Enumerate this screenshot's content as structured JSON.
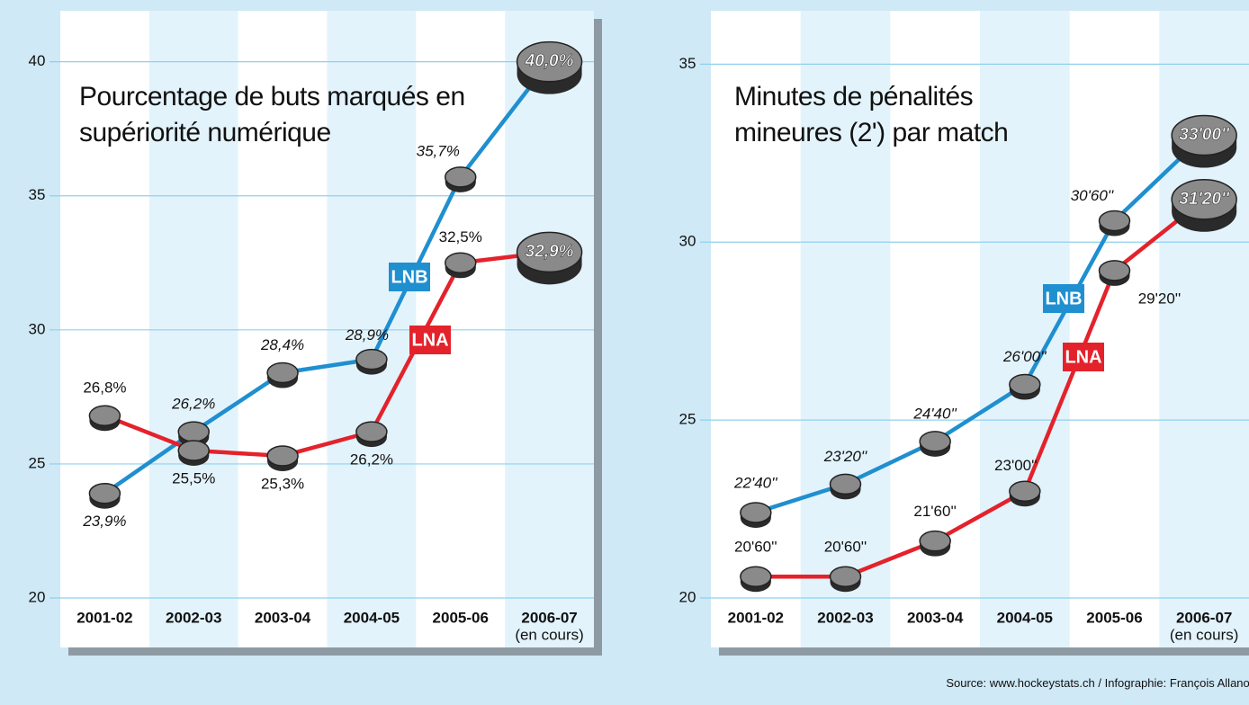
{
  "chart_data": [
    {
      "type": "line",
      "title": "Pourcentage de buts marqués en supériorité numérique",
      "categories": [
        "2001-02",
        "2002-03",
        "2003-04",
        "2004-05",
        "2005-06",
        "2006-07"
      ],
      "last_category_note": "(en cours)",
      "series": [
        {
          "name": "LNB",
          "color": "#1f8fd0",
          "values": [
            23.9,
            26.2,
            28.4,
            28.9,
            35.7,
            40.0
          ],
          "value_labels": [
            "23,9%",
            "26,2%",
            "28,4%",
            "28,9%",
            "35,7%",
            "40,0%"
          ]
        },
        {
          "name": "LNA",
          "color": "#e4222b",
          "values": [
            26.8,
            25.5,
            25.3,
            26.2,
            32.5,
            32.9
          ],
          "value_labels": [
            "26,8%",
            "25,5%",
            "25,3%",
            "26,2%",
            "32,5%",
            "32,9%"
          ]
        }
      ],
      "ylim": [
        20,
        41.9
      ],
      "yticks": [
        20,
        25,
        30,
        35,
        40
      ],
      "grid": true
    },
    {
      "type": "line",
      "title": "Minutes de pénalités mineures (2') par match",
      "categories": [
        "2001-02",
        "2002-03",
        "2003-04",
        "2004-05",
        "2005-06",
        "2006-07"
      ],
      "last_category_note": "(en cours)",
      "series": [
        {
          "name": "LNB",
          "color": "#1f8fd0",
          "values": [
            22.4,
            23.2,
            24.4,
            26.0,
            30.6,
            33.0
          ],
          "value_labels": [
            "22'40''",
            "23'20''",
            "24'40''",
            "26'00''",
            "30'60''",
            "33'00''"
          ]
        },
        {
          "name": "LNA",
          "color": "#e4222b",
          "values": [
            20.6,
            20.6,
            21.6,
            23.0,
            29.2,
            31.2
          ],
          "value_labels": [
            "20'60''",
            "20'60''",
            "21'60''",
            "23'00''",
            "29'20''",
            "31'20''"
          ]
        }
      ],
      "ylim": [
        20,
        36.5
      ],
      "yticks": [
        20,
        25,
        30,
        35
      ],
      "grid": true
    }
  ],
  "source": "Source: www.hockeystats.ch / Infographie: François Allanou"
}
